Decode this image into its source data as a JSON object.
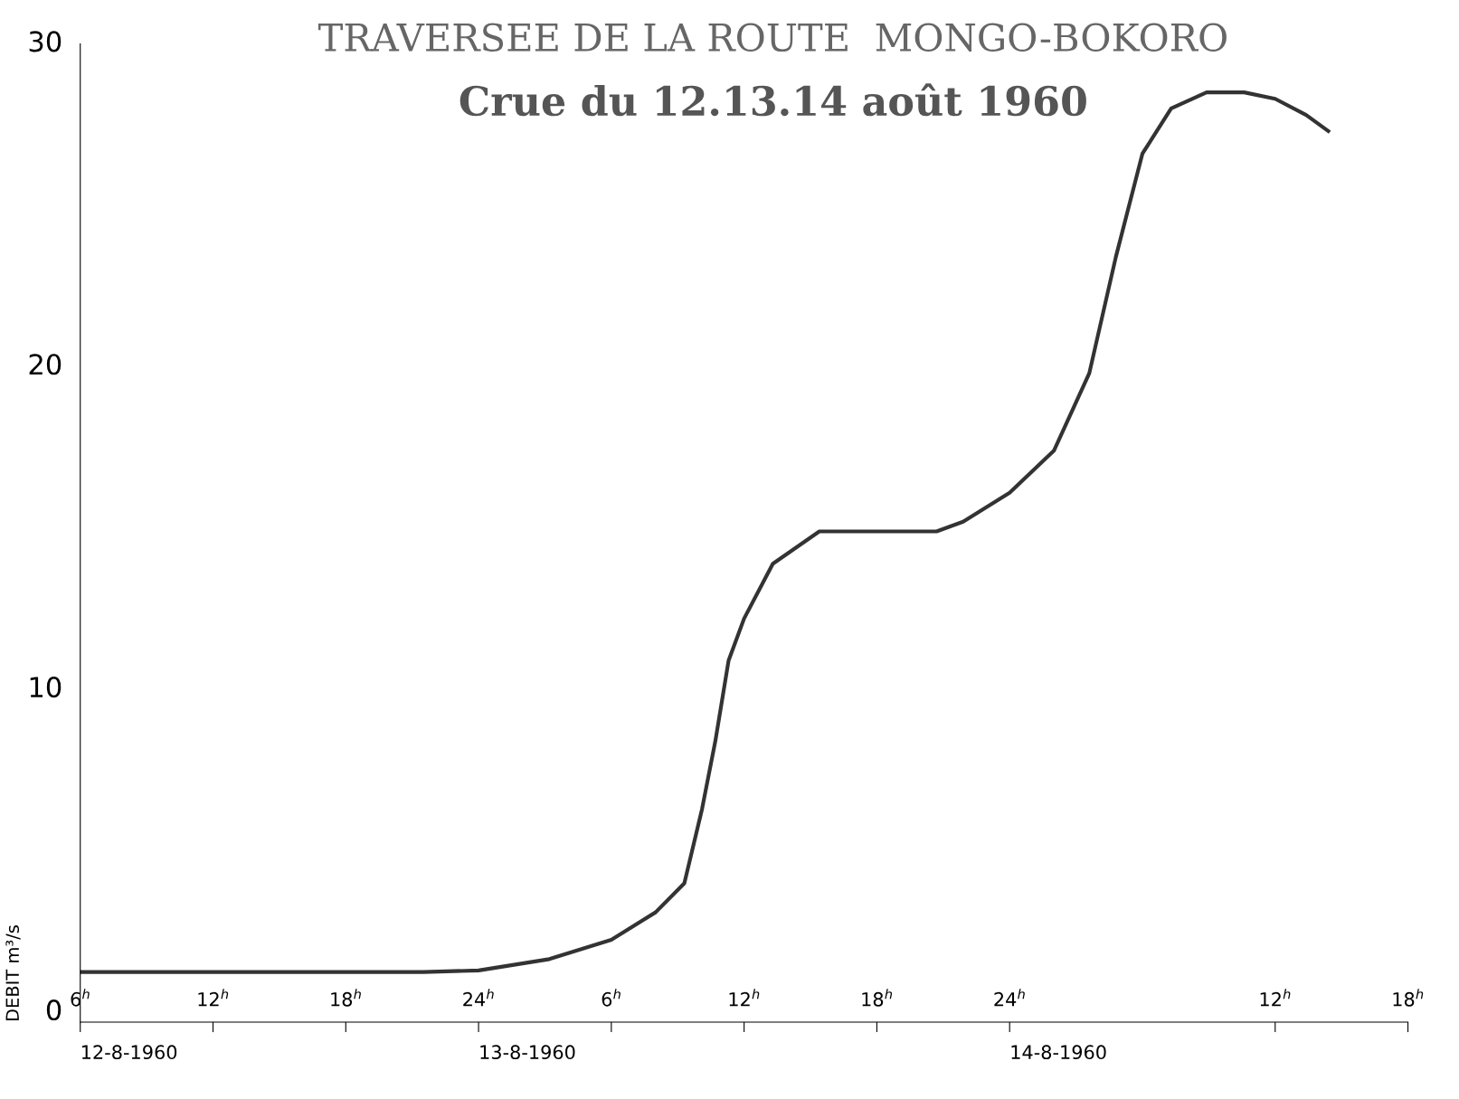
{
  "chart_data": {
    "type": "line",
    "title": "TRAVERSEE DE LA ROUTE  MONGO-BOKORO",
    "subtitle": "Crue du 12.13.14 août 1960",
    "ylabel": "DEBIT m³/s",
    "x": [
      "1960-08-12T06:00",
      "1960-08-12T12:00",
      "1960-08-12T18:00",
      "1960-08-12T21:30",
      "1960-08-13T00:00",
      "1960-08-13T03:12",
      "1960-08-13T06:00",
      "1960-08-13T08:00",
      "1960-08-13T09:18",
      "1960-08-13T10:06",
      "1960-08-13T10:42",
      "1960-08-13T11:18",
      "1960-08-13T12:00",
      "1960-08-13T13:18",
      "1960-08-13T15:24",
      "1960-08-13T18:00",
      "1960-08-13T20:42",
      "1960-08-13T21:54",
      "1960-08-14T00:00",
      "1960-08-14T02:00",
      "1960-08-14T03:36",
      "1960-08-14T04:48",
      "1960-08-14T06:00",
      "1960-08-14T07:18",
      "1960-08-14T08:54",
      "1960-08-14T10:36",
      "1960-08-14T12:00",
      "1960-08-14T13:24",
      "1960-08-14T14:24"
    ],
    "series": [
      {
        "color": "#333333",
        "values": [
          1.25,
          1.25,
          1.25,
          1.25,
          1.3,
          1.65,
          2.25,
          3.1,
          4.0,
          6.3,
          8.4,
          10.9,
          12.2,
          13.9,
          14.9,
          14.9,
          14.9,
          15.2,
          16.1,
          17.4,
          19.8,
          23.4,
          26.6,
          28.0,
          28.5,
          28.5,
          28.3,
          27.8,
          27.3
        ]
      }
    ],
    "xlim": [
      "1960-08-12T06:00",
      "1960-08-14T18:00"
    ],
    "xticks": [
      {
        "value": "1960-08-12T06:00",
        "label": "6$^{h}$"
      },
      {
        "value": "1960-08-12T12:00",
        "label": "12$^{h}$"
      },
      {
        "value": "1960-08-12T18:00",
        "label": "18$^{h}$"
      },
      {
        "value": "1960-08-13T00:00",
        "label": "24$^{h}$"
      },
      {
        "value": "1960-08-13T06:00",
        "label": "6$^{h}$"
      },
      {
        "value": "1960-08-13T12:00",
        "label": "12$^{h}$"
      },
      {
        "value": "1960-08-13T18:00",
        "label": "18$^{h}$"
      },
      {
        "value": "1960-08-14T00:00",
        "label": "24$^{h}$"
      },
      {
        "value": "1960-08-14T12:00",
        "label": "12$^{h}$"
      },
      {
        "value": "1960-08-14T18:00",
        "label": "18$^{h}$"
      }
    ],
    "ylim": [
      -0.3,
      30
    ],
    "yticks": [
      0,
      10,
      20,
      30
    ],
    "annotations": [
      "12-8-1960",
      "13-8-1960",
      "14-8-1960"
    ],
    "grid": false,
    "marker": "none",
    "line_style": "solid"
  }
}
